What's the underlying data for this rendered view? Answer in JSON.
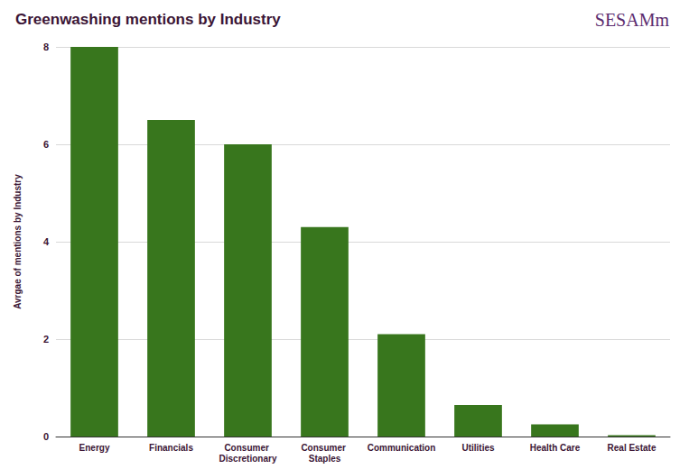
{
  "chart_data": {
    "type": "bar",
    "title": "Greenwashing mentions by Industry",
    "y_label": "Avrgae of mentions by Industry",
    "annotations": [
      "SESAMm"
    ],
    "categories": [
      "Energy",
      "Financials",
      "Consumer Discretionary",
      "Consumer Staples",
      "Communication",
      "Utilities",
      "Health Care",
      "Real Estate"
    ],
    "values": [
      8,
      6.5,
      6,
      4.3,
      2.1,
      0.65,
      0.25,
      0.03
    ],
    "color": "#38761d",
    "ylim": [
      0,
      8
    ],
    "yticks": [
      0,
      2,
      4,
      6,
      8
    ],
    "grid": true
  }
}
